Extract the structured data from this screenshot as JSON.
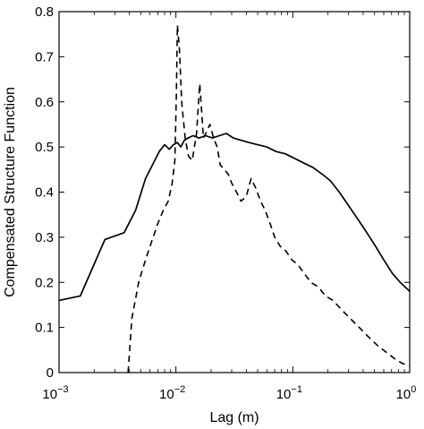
{
  "chart_data": {
    "type": "line",
    "title": "",
    "xlabel": "Lag (m)",
    "ylabel": "Compensated Structure Function",
    "xscale": "log",
    "xlim": [
      0.001,
      1
    ],
    "ylim": [
      0,
      0.8
    ],
    "grid": false,
    "legend": "none",
    "x_ticks": [
      {
        "value": 0.001,
        "base": "10",
        "exp": "−3"
      },
      {
        "value": 0.01,
        "base": "10",
        "exp": "−2"
      },
      {
        "value": 0.1,
        "base": "10",
        "exp": "−1"
      },
      {
        "value": 1,
        "base": "10",
        "exp": "0"
      }
    ],
    "y_ticks": [
      {
        "value": 0,
        "label": "0"
      },
      {
        "value": 0.1,
        "label": "0.1"
      },
      {
        "value": 0.2,
        "label": "0.2"
      },
      {
        "value": 0.3,
        "label": "0.3"
      },
      {
        "value": 0.4,
        "label": "0.4"
      },
      {
        "value": 0.5,
        "label": "0.5"
      },
      {
        "value": 0.6,
        "label": "0.6"
      },
      {
        "value": 0.7,
        "label": "0.7"
      },
      {
        "value": 0.8,
        "label": "0.8"
      }
    ],
    "series": [
      {
        "style": "solid",
        "color": "#000000",
        "x": [
          0.001,
          0.00152,
          0.00247,
          0.00361,
          0.00452,
          0.0055,
          0.0063,
          0.0072,
          0.008,
          0.0088,
          0.0095,
          0.0103,
          0.011,
          0.0118,
          0.0127,
          0.014,
          0.0158,
          0.018,
          0.0205,
          0.0235,
          0.027,
          0.031,
          0.036,
          0.042,
          0.05,
          0.06,
          0.072,
          0.086,
          0.103,
          0.123,
          0.148,
          0.178,
          0.21,
          0.25,
          0.3,
          0.36,
          0.43,
          0.51,
          0.6,
          0.71,
          0.83,
          1.0
        ],
        "y": [
          0.16,
          0.17,
          0.295,
          0.31,
          0.36,
          0.43,
          0.46,
          0.49,
          0.505,
          0.495,
          0.505,
          0.51,
          0.5,
          0.515,
          0.52,
          0.525,
          0.52,
          0.525,
          0.52,
          0.525,
          0.53,
          0.52,
          0.515,
          0.51,
          0.505,
          0.5,
          0.49,
          0.485,
          0.475,
          0.465,
          0.455,
          0.44,
          0.425,
          0.4,
          0.37,
          0.34,
          0.31,
          0.28,
          0.25,
          0.22,
          0.2,
          0.18
        ]
      },
      {
        "style": "dashed",
        "color": "#000000",
        "x": [
          0.0039,
          0.0042,
          0.0048,
          0.0055,
          0.0062,
          0.007,
          0.0078,
          0.0086,
          0.0093,
          0.0098,
          0.0101,
          0.0103,
          0.0107,
          0.0112,
          0.012,
          0.0128,
          0.0138,
          0.015,
          0.016,
          0.0166,
          0.0172,
          0.018,
          0.0195,
          0.021,
          0.0225,
          0.024,
          0.026,
          0.028,
          0.03,
          0.033,
          0.036,
          0.04,
          0.044,
          0.048,
          0.053,
          0.058,
          0.064,
          0.07,
          0.078,
          0.087,
          0.098,
          0.11,
          0.125,
          0.143,
          0.165,
          0.19,
          0.22,
          0.26,
          0.31,
          0.37,
          0.44,
          0.53,
          0.63,
          0.75,
          0.87,
          1.0
        ],
        "y": [
          0.0,
          0.12,
          0.2,
          0.25,
          0.29,
          0.33,
          0.36,
          0.38,
          0.42,
          0.47,
          0.62,
          0.77,
          0.72,
          0.6,
          0.52,
          0.48,
          0.47,
          0.53,
          0.64,
          0.58,
          0.52,
          0.53,
          0.55,
          0.52,
          0.5,
          0.46,
          0.45,
          0.44,
          0.42,
          0.4,
          0.38,
          0.39,
          0.43,
          0.41,
          0.38,
          0.36,
          0.33,
          0.3,
          0.28,
          0.27,
          0.25,
          0.24,
          0.22,
          0.2,
          0.19,
          0.17,
          0.16,
          0.14,
          0.12,
          0.1,
          0.08,
          0.06,
          0.045,
          0.03,
          0.02,
          0.015
        ]
      }
    ]
  }
}
